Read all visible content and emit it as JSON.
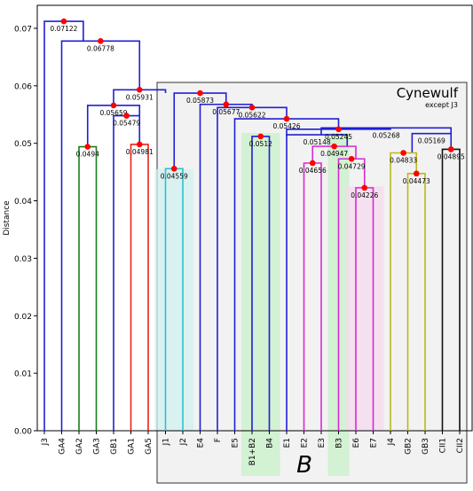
{
  "chart_data": {
    "type": "dendrogram",
    "ylabel": "Distance",
    "ylim": [
      0.0,
      0.074
    ],
    "yticks": [
      "0.00",
      "0.01",
      "0.02",
      "0.03",
      "0.04",
      "0.05",
      "0.06",
      "0.07"
    ],
    "leaves": [
      "J3",
      "GA4",
      "GA2",
      "GA3",
      "GB1",
      "GA1",
      "GA5",
      "J1",
      "J2",
      "E4",
      "F",
      "E5",
      "B1+B2",
      "B4",
      "E1",
      "E2",
      "E3",
      "B3",
      "E6",
      "E7",
      "J4",
      "GB2",
      "GB3",
      "CII1",
      "CII2"
    ],
    "colors": {
      "blue": "#1f1fd6",
      "green": "#1b7f1b",
      "red": "#e8231c",
      "cyan": "#2fc2c8",
      "magenta": "#d62ad6",
      "olive": "#b9b91a",
      "black": "#111111",
      "node": "#ff0000",
      "region_fill": "#f2f2f2",
      "green_band": "#c8f0c8",
      "pink_band": "#f6d9ee",
      "cyan_band": "#d0f0f0"
    },
    "merges": [
      {
        "label": "0.07122",
        "height": 0.07122,
        "left": 0.0,
        "right": 2.25,
        "lh": 0.0,
        "rh": 0.06778,
        "node": true,
        "color": "blue"
      },
      {
        "label": "0.06778",
        "height": 0.06778,
        "left": 1.0,
        "right": 5.5,
        "lh": 0.0,
        "rh": 0.05931,
        "node": true,
        "color": "blue"
      },
      {
        "label": "0.05931",
        "height": 0.05931,
        "left": 4.0,
        "right": 7.0,
        "lh": 0.05659,
        "rh": 0.05873,
        "node": true,
        "color": "blue"
      },
      {
        "label": "0.05659",
        "height": 0.05659,
        "left": 2.5,
        "right": 5.5,
        "lh": 0.0494,
        "rh": 0.05479,
        "node": true,
        "color": "blue"
      },
      {
        "label": "0.0494",
        "height": 0.0494,
        "left": 2.0,
        "right": 3.0,
        "lh": 0.0,
        "rh": 0.0,
        "node": true,
        "color": "green"
      },
      {
        "label": "0.05479",
        "height": 0.05479,
        "left": 4.0,
        "right": 5.5,
        "lh": 0.0,
        "rh": 0.04981,
        "node": true,
        "color": "blue"
      },
      {
        "label": "0.04981",
        "height": 0.04981,
        "left": 5.0,
        "right": 6.0,
        "lh": 0.0,
        "rh": 0.0,
        "node": true,
        "color": "red"
      },
      {
        "label": "0.05873",
        "height": 0.05873,
        "left": 7.5,
        "right": 10.5,
        "lh": 0.04559,
        "rh": 0.05677,
        "node": true,
        "color": "blue"
      },
      {
        "label": "0.04559",
        "height": 0.04559,
        "left": 7.0,
        "right": 8.0,
        "lh": 0.0,
        "rh": 0.0,
        "node": true,
        "color": "cyan"
      },
      {
        "label": "0.05677",
        "height": 0.05677,
        "left": 9.0,
        "right": 12.0,
        "lh": 0.0,
        "rh": 0.05622,
        "node": true,
        "color": "blue"
      },
      {
        "label": "0.05622",
        "height": 0.05622,
        "left": 10.0,
        "right": 14.0,
        "lh": 0.0,
        "rh": 0.05426,
        "node": true,
        "color": "blue"
      },
      {
        "label": "0.05426",
        "height": 0.05426,
        "left": 11.0,
        "right": 17.0,
        "lh": 0.0,
        "rh": 0.05245,
        "node": true,
        "color": "blue"
      },
      {
        "label": "0.05245",
        "height": 0.05245,
        "left": 14.0,
        "right": 20.0,
        "lh": 0.0512,
        "rh": 0.05268,
        "node": true,
        "color": "blue"
      },
      {
        "label": "0.0512",
        "height": 0.0512,
        "left": 12.0,
        "right": 13.0,
        "lh": 0.0,
        "rh": 0.0,
        "node": true,
        "color": "blue"
      },
      {
        "label": "0.05268",
        "height": 0.05268,
        "left": 16.0,
        "right": 23.5,
        "lh": 0.05148,
        "rh": 0.05169,
        "node": false,
        "color": "blue"
      },
      {
        "label": "0.05148",
        "height": 0.05148,
        "left": 14.0,
        "right": 17.5,
        "lh": 0.0,
        "rh": 0.04947,
        "node": false,
        "color": "blue"
      },
      {
        "label": "0.04947",
        "height": 0.04947,
        "left": 15.5,
        "right": 18.0,
        "lh": 0.04656,
        "rh": 0.04729,
        "node": true,
        "color": "magenta"
      },
      {
        "label": "0.04656",
        "height": 0.04656,
        "left": 15.0,
        "right": 16.0,
        "lh": 0.0,
        "rh": 0.0,
        "node": true,
        "color": "magenta"
      },
      {
        "label": "0.04729",
        "height": 0.04729,
        "left": 17.0,
        "right": 18.5,
        "lh": 0.0,
        "rh": 0.04226,
        "node": true,
        "color": "magenta"
      },
      {
        "label": "0.04226",
        "height": 0.04226,
        "left": 18.0,
        "right": 19.0,
        "lh": 0.0,
        "rh": 0.0,
        "node": true,
        "color": "magenta"
      },
      {
        "label": "0.05169",
        "height": 0.05169,
        "left": 21.25,
        "right": 23.5,
        "lh": 0.04833,
        "rh": 0.04895,
        "node": false,
        "color": "blue"
      },
      {
        "label": "0.04833",
        "height": 0.04833,
        "left": 20.0,
        "right": 21.5,
        "lh": 0.0,
        "rh": 0.04473,
        "node": true,
        "color": "olive"
      },
      {
        "label": "0.04473",
        "height": 0.04473,
        "left": 21.0,
        "right": 22.0,
        "lh": 0.0,
        "rh": 0.0,
        "node": true,
        "color": "olive"
      },
      {
        "label": "0.04895",
        "height": 0.04895,
        "left": 23.0,
        "right": 24.0,
        "lh": 0.0,
        "rh": 0.0,
        "node": true,
        "color": "black"
      }
    ],
    "annotations": {
      "region_title": "Cynewulf",
      "region_subtitle": "except J3",
      "group_label": "B"
    }
  }
}
